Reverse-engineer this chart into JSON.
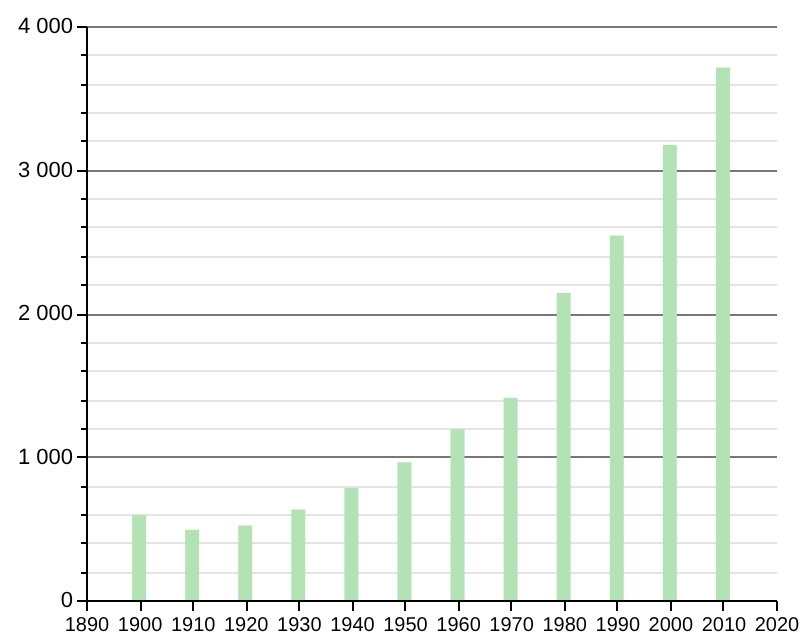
{
  "chart_data": {
    "type": "bar",
    "x": [
      1900,
      1910,
      1920,
      1930,
      1940,
      1950,
      1960,
      1970,
      1980,
      1990,
      2000,
      2010
    ],
    "values": [
      590,
      490,
      520,
      630,
      780,
      960,
      1190,
      1410,
      2140,
      2540,
      3170,
      3710
    ],
    "color": "#b3e3b5",
    "xlim": [
      1890,
      2020
    ],
    "xticks": [
      1890,
      1900,
      1910,
      1920,
      1930,
      1940,
      1950,
      1960,
      1970,
      1980,
      1990,
      2000,
      2010,
      2020
    ],
    "ylim": [
      0,
      4000
    ],
    "yticks": [
      0,
      {
        "value": 200,
        "label": null
      },
      {
        "value": 400,
        "label": null
      },
      {
        "value": 600,
        "label": null
      },
      {
        "value": 800,
        "label": null
      },
      {
        "value": 1000,
        "label": "1 000"
      },
      {
        "value": 1200,
        "label": null
      },
      {
        "value": 1400,
        "label": null
      },
      {
        "value": 1600,
        "label": null
      },
      {
        "value": 1800,
        "label": null
      },
      {
        "value": 2000,
        "label": "2 000"
      },
      {
        "value": 2200,
        "label": null
      },
      {
        "value": 2400,
        "label": null
      },
      {
        "value": 2600,
        "label": null
      },
      {
        "value": 2800,
        "label": null
      },
      {
        "value": 3000,
        "label": "3 000"
      },
      {
        "value": 3200,
        "label": null
      },
      {
        "value": 3400,
        "label": null
      },
      {
        "value": 3600,
        "label": null
      },
      {
        "value": 3800,
        "label": null
      },
      {
        "value": 4000,
        "label": "4 000"
      }
    ],
    "grid": "y"
  }
}
